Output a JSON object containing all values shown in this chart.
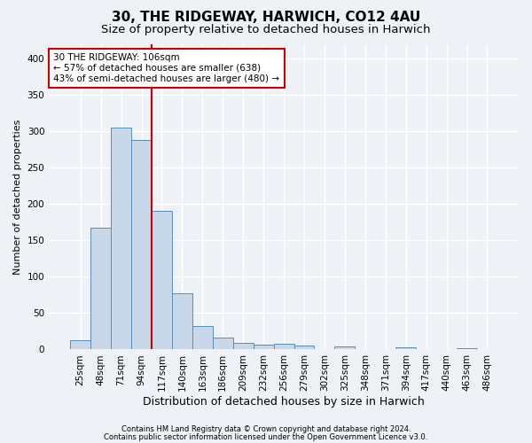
{
  "title1": "30, THE RIDGEWAY, HARWICH, CO12 4AU",
  "title2": "Size of property relative to detached houses in Harwich",
  "xlabel": "Distribution of detached houses by size in Harwich",
  "ylabel": "Number of detached properties",
  "categories": [
    "25sqm",
    "48sqm",
    "71sqm",
    "94sqm",
    "117sqm",
    "140sqm",
    "163sqm",
    "186sqm",
    "209sqm",
    "232sqm",
    "256sqm",
    "279sqm",
    "302sqm",
    "325sqm",
    "348sqm",
    "371sqm",
    "394sqm",
    "417sqm",
    "440sqm",
    "463sqm",
    "486sqm"
  ],
  "values": [
    13,
    167,
    305,
    288,
    191,
    77,
    32,
    17,
    9,
    7,
    8,
    5,
    0,
    4,
    0,
    0,
    3,
    0,
    0,
    2,
    0
  ],
  "bar_color": "#c8d8e8",
  "bar_edge_color": "#5b8db8",
  "vline_x": 3.5,
  "vline_color": "#cc0000",
  "annotation_line1": "30 THE RIDGEWAY: 106sqm",
  "annotation_line2": "← 57% of detached houses are smaller (638)",
  "annotation_line3": "43% of semi-detached houses are larger (480) →",
  "annotation_box_color": "#ffffff",
  "annotation_box_edge": "#cc0000",
  "footer1": "Contains HM Land Registry data © Crown copyright and database right 2024.",
  "footer2": "Contains public sector information licensed under the Open Government Licence v3.0.",
  "ylim": [
    0,
    420
  ],
  "yticks": [
    0,
    50,
    100,
    150,
    200,
    250,
    300,
    350,
    400
  ],
  "background_color": "#eef2f7",
  "grid_color": "#ffffff",
  "title_fontsize": 11,
  "subtitle_fontsize": 9.5,
  "ylabel_fontsize": 8,
  "xlabel_fontsize": 9,
  "tick_fontsize": 7.5,
  "annotation_fontsize": 7.5,
  "footer_fontsize": 6
}
